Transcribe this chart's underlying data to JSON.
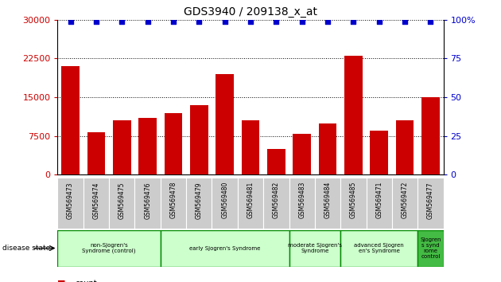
{
  "title": "GDS3940 / 209138_x_at",
  "samples": [
    "GSM569473",
    "GSM569474",
    "GSM569475",
    "GSM569476",
    "GSM569478",
    "GSM569479",
    "GSM569480",
    "GSM569481",
    "GSM569482",
    "GSM569483",
    "GSM569484",
    "GSM569485",
    "GSM569471",
    "GSM569472",
    "GSM569477"
  ],
  "counts": [
    21000,
    8200,
    10500,
    11000,
    12000,
    13500,
    19500,
    10500,
    5000,
    8000,
    10000,
    23000,
    8500,
    10500,
    15000
  ],
  "percentiles": [
    99,
    99,
    99,
    99,
    99,
    99,
    99,
    99,
    99,
    99,
    99,
    99,
    99,
    99,
    99
  ],
  "ylim_left": [
    0,
    30000
  ],
  "ylim_right": [
    0,
    100
  ],
  "yticks_left": [
    0,
    7500,
    15000,
    22500,
    30000
  ],
  "yticks_right": [
    0,
    25,
    50,
    75,
    100
  ],
  "ytick_labels_right": [
    "0",
    "25",
    "50",
    "75",
    "100%"
  ],
  "groups": [
    {
      "label": "non-Sjogren's\nSyndrome (control)",
      "start": 0,
      "end": 4,
      "color": "#ccffcc"
    },
    {
      "label": "early Sjogren's Syndrome",
      "start": 4,
      "end": 9,
      "color": "#ccffcc"
    },
    {
      "label": "moderate Sjogren's\nSyndrome",
      "start": 9,
      "end": 11,
      "color": "#ccffcc"
    },
    {
      "label": "advanced Sjogren\nen's Syndrome",
      "start": 11,
      "end": 14,
      "color": "#ccffcc"
    },
    {
      "label": "Sjogren\ns synd\nrome\ncontrol",
      "start": 14,
      "end": 15,
      "color": "#44bb44"
    }
  ],
  "bar_color": "#cc0000",
  "percentile_color": "#0000cc",
  "tick_label_color_left": "#cc0000",
  "tick_label_color_right": "#0000cc",
  "group_border_color": "#008800",
  "sample_bg_color": "#cccccc",
  "legend_count_color": "#cc0000",
  "legend_percentile_color": "#0000cc"
}
